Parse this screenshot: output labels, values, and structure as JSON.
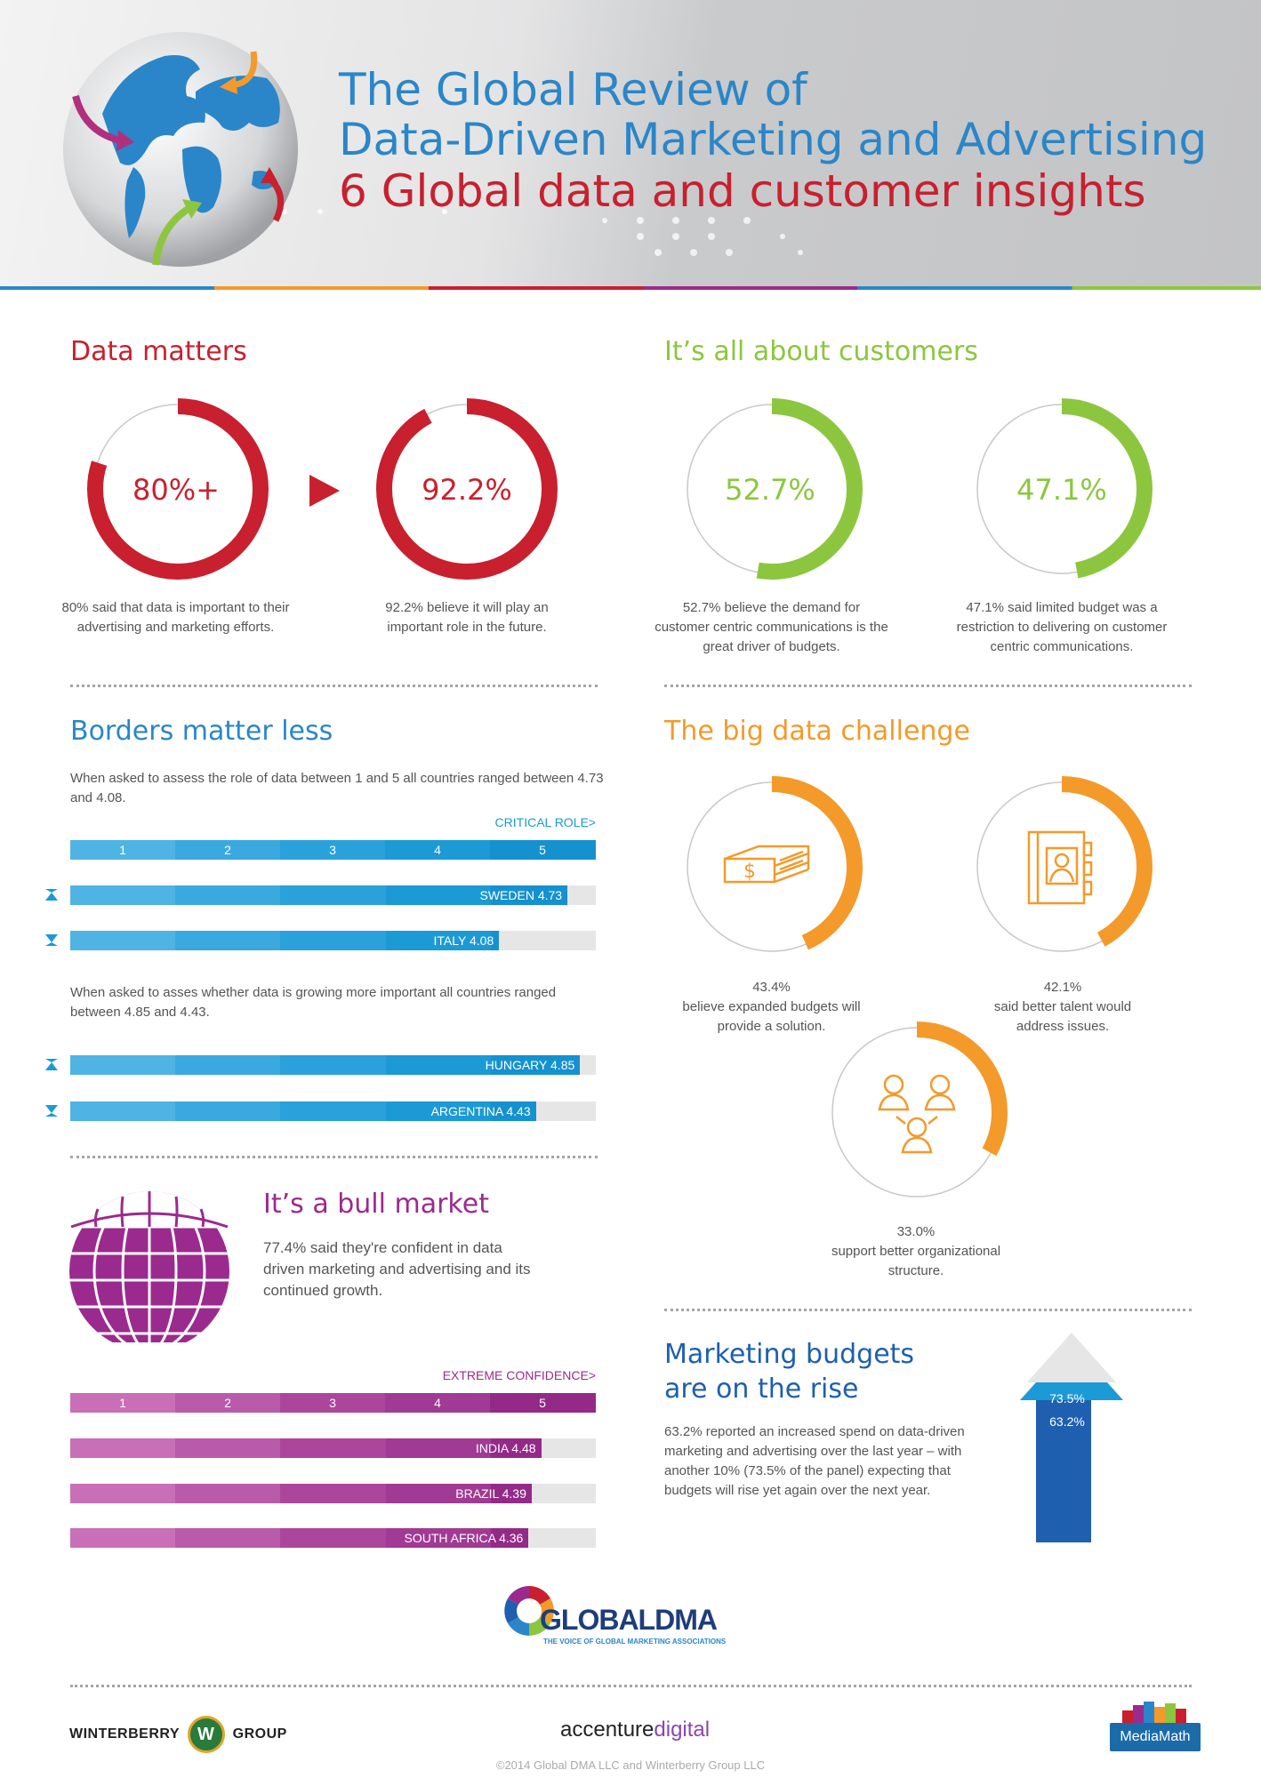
{
  "header": {
    "title_line1": "The Global Review of",
    "title_line2": "Data-Driven Marketing and Advertising",
    "title_line3": "6 Global data and customer insights"
  },
  "colors": {
    "red": "#c8202e",
    "green": "#8cc63f",
    "blue": "#2a86c8",
    "orange": "#f39a2a",
    "purple": "#9b2a8e",
    "light_blue_bar": "#4fb3e4",
    "dark_blue_bar": "#1b9ad6",
    "arrow_blue": "#1e5fb0"
  },
  "data_matters": {
    "title": "Data matters",
    "stat1": {
      "label": "80%+",
      "caption": "80% said that data is important to their advertising and marketing efforts.",
      "fraction": 0.8
    },
    "stat2": {
      "label": "92.2%",
      "caption": "92.2% believe it will play an important role in the future.",
      "fraction": 0.922
    }
  },
  "customers": {
    "title": "It’s all about customers",
    "stat1": {
      "label": "52.7%",
      "caption": "52.7% believe the demand for customer centric communications is the great driver of budgets.",
      "fraction": 0.527
    },
    "stat2": {
      "label": "47.1%",
      "caption": "47.1% said limited budget was a restriction to delivering on customer centric communications.",
      "fraction": 0.471
    }
  },
  "borders": {
    "title": "Borders matter less",
    "intro1": "When asked to assess the role of data between 1 and 5 all countries ranged between 4.73 and 4.08.",
    "critical_label": "CRITICAL ROLE>",
    "scale": [
      "1",
      "2",
      "3",
      "4",
      "5"
    ],
    "row_high1": {
      "label": "SWEDEN 4.73",
      "value": 4.73
    },
    "row_low1": {
      "label": "ITALY 4.08",
      "value": 4.08
    },
    "intro2": "When asked to asses whether data is growing more important all countries ranged between 4.85 and 4.43.",
    "row_high2": {
      "label": "HUNGARY 4.85",
      "value": 4.85
    },
    "row_low2": {
      "label": "ARGENTINA 4.43",
      "value": 4.43
    }
  },
  "big_data": {
    "title": "The big data challenge",
    "stat1": {
      "caption_pct": "43.4%",
      "caption": "believe expanded budgets will provide a solution.",
      "fraction": 0.434,
      "icon": "money-icon"
    },
    "stat2": {
      "caption_pct": "42.1%",
      "caption": "said better talent would address issues.",
      "fraction": 0.421,
      "icon": "profile-book-icon"
    },
    "stat3": {
      "caption_pct": "33.0%",
      "caption": "support better organizational structure.",
      "fraction": 0.33,
      "icon": "people-network-icon"
    }
  },
  "bull": {
    "title": "It’s a bull market",
    "text": "77.4% said they're confident in data driven marketing and advertising and its continued growth.",
    "confidence_label": "EXTREME CONFIDENCE>",
    "scale": [
      "1",
      "2",
      "3",
      "4",
      "5"
    ],
    "rows": [
      {
        "label": "INDIA 4.48",
        "value": 4.48
      },
      {
        "label": "BRAZIL 4.39",
        "value": 4.39
      },
      {
        "label": "SOUTH AFRICA 4.36",
        "value": 4.36
      }
    ]
  },
  "budgets": {
    "title_line1": "Marketing budgets",
    "title_line2": "are on the rise",
    "text": "63.2% reported an increased spend on data-driven marketing and advertising over the last year – with another 10% (73.5% of the panel) expecting that budgets will rise yet again over the next year.",
    "arrow_top": "73.5%",
    "arrow_bottom": "63.2%"
  },
  "footer": {
    "globaldma": "GLOBALDMA",
    "globaldma_tag": "THE VOICE OF GLOBAL MARKETING ASSOCIATIONS",
    "winterberry_left": "WINTERBERRY",
    "winterberry_mark": "W",
    "winterberry_right": "GROUP",
    "accenture_main": "accenture",
    "accenture_digital": "digital",
    "mediamath": "MediaMath",
    "copyright": "©2014 Global DMA LLC and Winterberry Group LLC"
  }
}
